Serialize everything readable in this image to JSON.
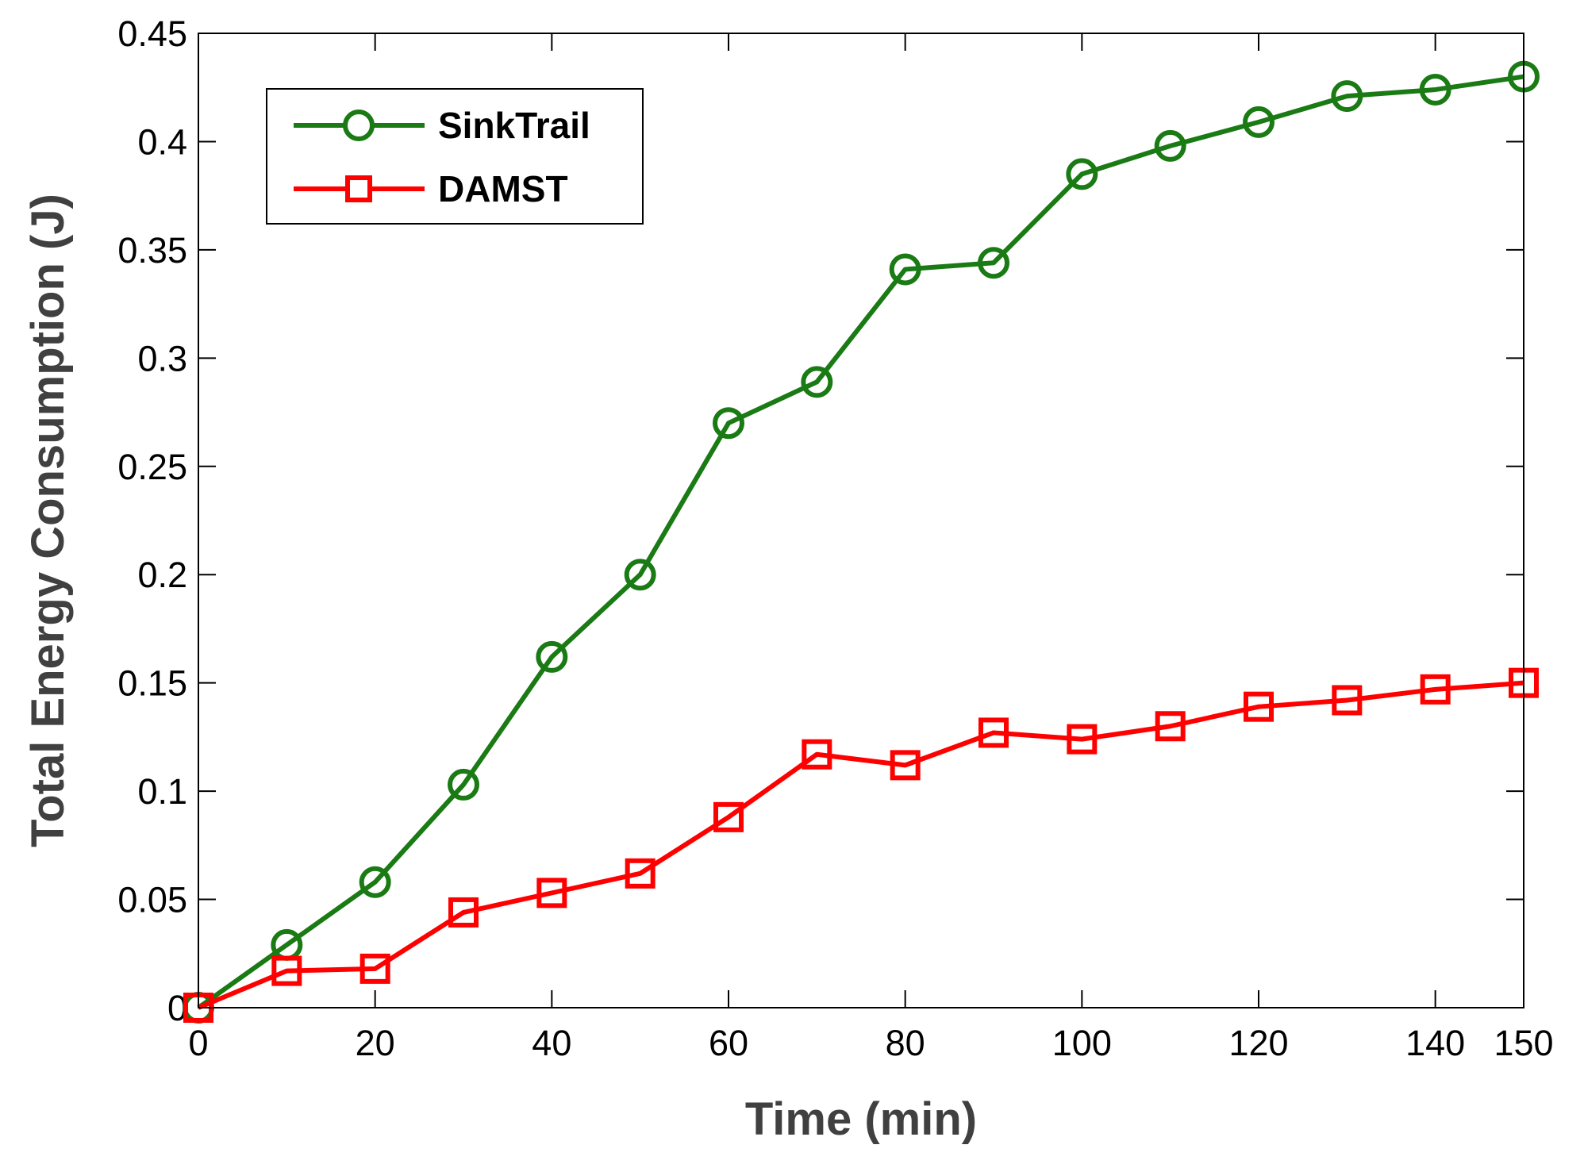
{
  "chart_data": {
    "type": "line",
    "title": "",
    "xlabel": "Time (min)",
    "ylabel": "Total Energy Consumption (J)",
    "xlim": [
      0,
      150
    ],
    "ylim": [
      0,
      0.45
    ],
    "x": [
      0,
      10,
      20,
      30,
      40,
      50,
      60,
      70,
      80,
      90,
      100,
      110,
      120,
      130,
      140,
      150
    ],
    "x_ticks": [
      "0",
      "20",
      "40",
      "60",
      "80",
      "100",
      "120",
      "140",
      "150"
    ],
    "y_ticks": [
      "0",
      "0.05",
      "0.1",
      "0.15",
      "0.2",
      "0.25",
      "0.3",
      "0.35",
      "0.4",
      "0.45"
    ],
    "grid": false,
    "legend_position": "top-left",
    "series": [
      {
        "name": "SinkTrail",
        "color": "#1a7a14",
        "marker": "circle",
        "values": [
          0,
          0.029,
          0.058,
          0.103,
          0.162,
          0.2,
          0.27,
          0.289,
          0.341,
          0.344,
          0.385,
          0.398,
          0.409,
          0.421,
          0.424,
          0.43
        ]
      },
      {
        "name": "DAMST",
        "color": "#ff0000",
        "marker": "square",
        "values": [
          0,
          0.017,
          0.018,
          0.044,
          0.053,
          0.062,
          0.088,
          0.117,
          0.112,
          0.127,
          0.124,
          0.13,
          0.139,
          0.142,
          0.147,
          0.15
        ]
      }
    ]
  }
}
